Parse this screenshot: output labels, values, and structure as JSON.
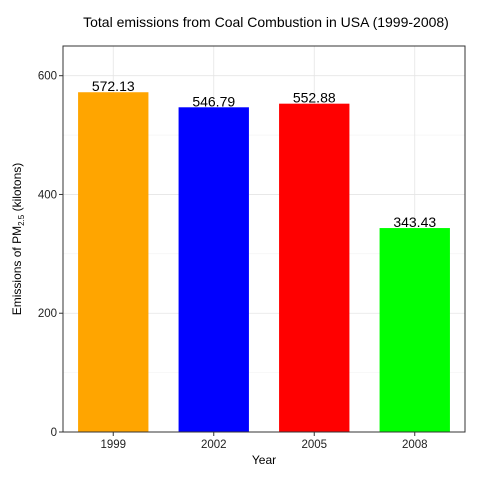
{
  "chart_data": {
    "type": "bar",
    "title": "Total emissions from Coal Combustion in USA (1999-2008)",
    "xlabel": "Year",
    "ylabel": {
      "prefix": "Emissions of PM",
      "subscript": "2.5",
      "suffix": " (kilotons)"
    },
    "categories": [
      "1999",
      "2002",
      "2005",
      "2008"
    ],
    "values": [
      572.13,
      546.79,
      552.88,
      343.43
    ],
    "data_labels": [
      "572.13",
      "546.79",
      "552.88",
      "343.43"
    ],
    "colors": [
      "#FFA500",
      "#0000FF",
      "#FF0000",
      "#00FF00"
    ],
    "ylim": [
      0,
      650
    ],
    "yticks": [
      0,
      200,
      400,
      600
    ],
    "ytick_labels": [
      "0",
      "200",
      "400",
      "600"
    ],
    "grid": true,
    "legend": "none"
  }
}
